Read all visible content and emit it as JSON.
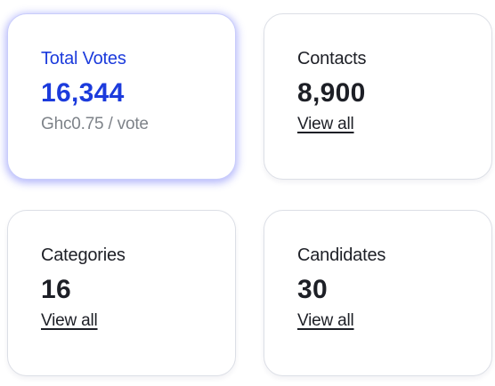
{
  "cards": [
    {
      "label": "Total Votes",
      "value": "16,344",
      "subtext": "Ghc0.75 / vote"
    },
    {
      "label": "Contacts",
      "value": "8,900",
      "link": "View all"
    },
    {
      "label": "Categories",
      "value": "16",
      "link": "View all"
    },
    {
      "label": "Candidates",
      "value": "30",
      "link": "View all"
    }
  ],
  "colors": {
    "accent": "#1c3bdc",
    "glow": "#6268f6",
    "text": "#1d1f26",
    "muted": "#7e8389",
    "border": "#dcdfe6"
  }
}
